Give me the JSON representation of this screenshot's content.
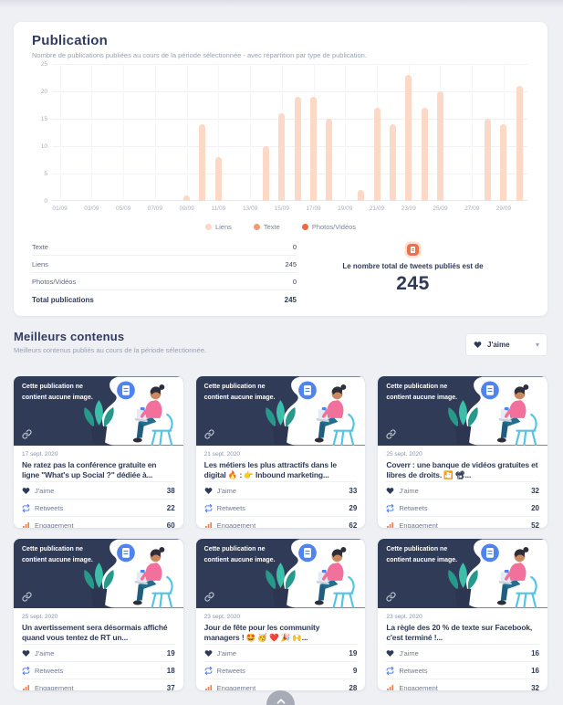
{
  "publication": {
    "title": "Publication",
    "subtitle": "Nombre de publications publiées au cours de la période sélectionnée - avec répartition par type de publication.",
    "table": {
      "rows": [
        {
          "label": "Texte",
          "value": "0"
        },
        {
          "label": "Liens",
          "value": "245"
        },
        {
          "label": "Photos/Vidéos",
          "value": "0"
        }
      ],
      "total_label": "Total publications",
      "total_value": "245"
    },
    "summary": {
      "text": "Le nombre total de tweets publiés est de",
      "value": "245"
    }
  },
  "chart_data": {
    "type": "bar",
    "title": "Publication",
    "x": [
      "01/09",
      "02/09",
      "03/09",
      "04/09",
      "05/09",
      "06/09",
      "07/09",
      "08/09",
      "09/09",
      "10/09",
      "11/09",
      "12/09",
      "13/09",
      "14/09",
      "15/09",
      "16/09",
      "17/09",
      "18/09",
      "19/09",
      "20/09",
      "21/09",
      "22/09",
      "23/09",
      "24/09",
      "25/09",
      "26/09",
      "27/09",
      "28/09",
      "29/09",
      "30/09"
    ],
    "values": [
      0,
      0,
      0,
      0,
      0,
      0,
      0,
      0,
      1,
      14,
      8,
      0,
      0,
      10,
      16,
      19,
      19,
      15,
      0,
      2,
      17,
      14,
      23,
      17,
      20,
      0,
      0,
      15,
      14,
      21
    ],
    "x_tick_labels": [
      "01/09",
      "03/09",
      "05/09",
      "07/09",
      "09/09",
      "11/09",
      "13/09",
      "15/09",
      "17/09",
      "19/09",
      "21/09",
      "23/09",
      "25/09",
      "27/09",
      "29/09"
    ],
    "y_ticks": [
      0,
      5,
      10,
      15,
      20,
      25
    ],
    "ylim": [
      0,
      25
    ],
    "grid": true,
    "bar_color": "#fbd9c6",
    "legend_position": "bottom",
    "legend": [
      {
        "label": "Liens",
        "color": "#fbd9c6"
      },
      {
        "label": "Texte",
        "color": "#f29a72"
      },
      {
        "label": "Photos/Vidéos",
        "color": "#eb6a3e"
      }
    ]
  },
  "best_content": {
    "title": "Meilleurs contenus",
    "subtitle": "Meilleurs contenus publiés au cours de la période sélectionnée.",
    "sort_dropdown": {
      "label": "J'aime"
    },
    "stat_labels": {
      "jaime": "J'aime",
      "retweets": "Retweets",
      "engagement": "Engagement"
    },
    "cards": [
      {
        "overlay_text": "Cette publication ne contient aucune image.",
        "date": "17 sept. 2020",
        "title": "Ne ratez pas la conférence gratuite en ligne \"What's up Social ?\" dédiée à...",
        "stats": {
          "jaime": "38",
          "retweets": "22",
          "engagement": "60"
        }
      },
      {
        "overlay_text": "Cette publication ne contient aucune image.",
        "date": "21 sept. 2020",
        "title": "Les métiers les plus attractifs dans le digital 🔥 : 👉 Inbound marketing...",
        "stats": {
          "jaime": "33",
          "retweets": "29",
          "engagement": "62"
        }
      },
      {
        "overlay_text": "Cette publication ne contient aucune image.",
        "date": "25 sept. 2020",
        "title": "Coverr : une banque de vidéos gratuites et libres de droits. 🎦 📽...",
        "stats": {
          "jaime": "32",
          "retweets": "20",
          "engagement": "52"
        }
      },
      {
        "overlay_text": "Cette publication ne contient aucune image.",
        "date": "25 sept. 2020",
        "title": "Un avertissement sera désormais affiché quand vous tentez de RT un...",
        "stats": {
          "jaime": "19",
          "retweets": "18",
          "engagement": "37"
        }
      },
      {
        "overlay_text": "Cette publication ne contient aucune image.",
        "date": "23 sept. 2020",
        "title": "Jour de fête pour les community managers ! 🤩 🥳 ❤️ 🎉 🙌...",
        "stats": {
          "jaime": "19",
          "retweets": "9",
          "engagement": "28"
        }
      },
      {
        "overlay_text": "Cette publication ne contient aucune image.",
        "date": "23 sept. 2020",
        "title": "La règle des 20 % de texte sur Facebook, c'est terminé !...",
        "stats": {
          "jaime": "16",
          "retweets": "16",
          "engagement": "32"
        }
      }
    ]
  },
  "icons": {
    "caret_down": "▾"
  },
  "colors": {
    "page_bg": "#eef0f4",
    "panel_bg": "#ffffff",
    "navy_text": "#2f3a59",
    "muted_text": "#98a1b3",
    "card_header_bg": "#303b58",
    "accent_blue": "#4f83ee",
    "accent_orange": "#ee7d4e",
    "badge_orange": "#ef7048",
    "bar_peach": "#fbd9c6"
  }
}
